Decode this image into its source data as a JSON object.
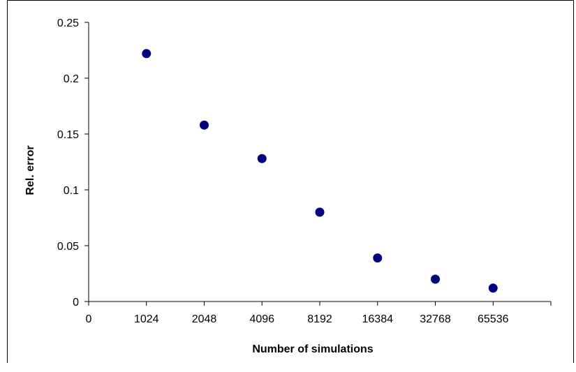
{
  "chart_data": {
    "type": "scatter",
    "title": "",
    "xlabel": "Number of simulations",
    "ylabel": "Rel. error",
    "x_tick_labels": [
      "0",
      "1024",
      "2048",
      "4096",
      "8192",
      "16384",
      "32768",
      "65536"
    ],
    "y_tick_labels": [
      "0",
      "0.05",
      "0.1",
      "0.15",
      "0.2",
      "0.25"
    ],
    "ylim": [
      0,
      0.25
    ],
    "grid": false,
    "legend": "none",
    "marker_color": "#000080",
    "series": [
      {
        "x": [
          "1024",
          "2048",
          "4096",
          "8192",
          "16384",
          "32768",
          "65536"
        ],
        "values": [
          0.222,
          0.158,
          0.128,
          0.08,
          0.039,
          0.02,
          0.012
        ]
      }
    ]
  }
}
